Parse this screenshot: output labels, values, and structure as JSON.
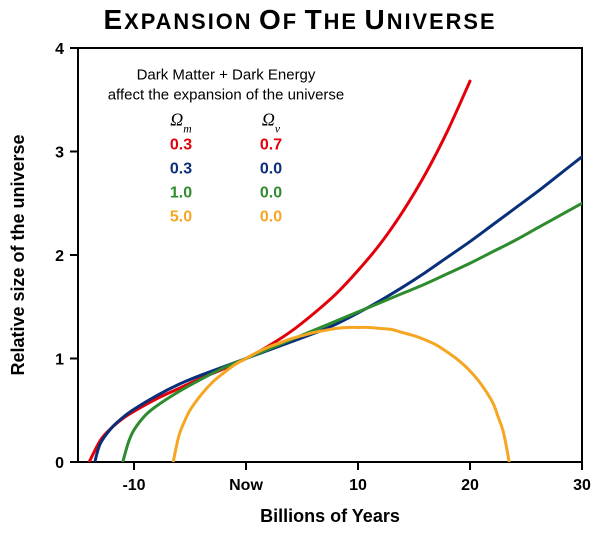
{
  "title": "Expansion of the Universe",
  "title_fontsize": 28,
  "xlabel": "Billions of Years",
  "ylabel": "Relative size of the universe",
  "background_color": "#ffffff",
  "plot_bg": "#ffffff",
  "axis_color": "#000000",
  "grid_color": "#000000",
  "border_color": "#000000",
  "xlim": [
    -15,
    30
  ],
  "ylim": [
    0,
    4
  ],
  "xticks": [
    -10,
    0,
    10,
    20,
    30
  ],
  "xtick_labels": [
    "-10",
    "Now",
    "10",
    "20",
    "30"
  ],
  "yticks": [
    0,
    1,
    2,
    3,
    4
  ],
  "ytick_labels": [
    "0",
    "1",
    "2",
    "3",
    "4"
  ],
  "tick_fontsize": 16,
  "label_fontsize": 18,
  "line_width": 3,
  "tick_len": 8,
  "legend": {
    "header1": "Dark Matter + Dark Energy",
    "header2": "affect the expansion of the universe",
    "col_m": "Ω",
    "col_m_sub": "m",
    "col_v": "Ω",
    "col_v_sub": "v",
    "header_color": "#000000",
    "header_fontsize": 15,
    "col_fontsize": 18,
    "val_fontsize": 16,
    "rows": [
      {
        "m": "0.3",
        "v": "0.7",
        "color": "#e3000b"
      },
      {
        "m": "0.3",
        "v": "0.0",
        "color": "#0a2f7a"
      },
      {
        "m": "1.0",
        "v": "0.0",
        "color": "#2e8b2e"
      },
      {
        "m": "5.0",
        "v": "0.0",
        "color": "#f5a623"
      }
    ]
  },
  "series": [
    {
      "name": "red",
      "color": "#e3000b",
      "x": [
        -14.0,
        -13,
        -12,
        -11,
        -10,
        -8,
        -6,
        -4,
        -2,
        0,
        2,
        4,
        6,
        8,
        10,
        12,
        14,
        16,
        18,
        20
      ],
      "y": [
        0.0,
        0.21,
        0.33,
        0.42,
        0.49,
        0.61,
        0.71,
        0.81,
        0.9,
        1.0,
        1.12,
        1.26,
        1.43,
        1.62,
        1.85,
        2.11,
        2.42,
        2.78,
        3.2,
        3.68
      ]
    },
    {
      "name": "blue",
      "color": "#0a2f7a",
      "x": [
        -13.5,
        -13,
        -12,
        -11,
        -10,
        -8,
        -6,
        -4,
        -2,
        0,
        2,
        4,
        6,
        8,
        10,
        12,
        14,
        16,
        18,
        20,
        22,
        24,
        26,
        28,
        30
      ],
      "y": [
        0.0,
        0.18,
        0.33,
        0.43,
        0.51,
        0.64,
        0.75,
        0.84,
        0.92,
        1.0,
        1.08,
        1.16,
        1.24,
        1.33,
        1.44,
        1.56,
        1.69,
        1.83,
        1.98,
        2.13,
        2.29,
        2.45,
        2.61,
        2.78,
        2.95
      ]
    },
    {
      "name": "green",
      "color": "#2e8b2e",
      "x": [
        -11.0,
        -10.5,
        -10,
        -9,
        -8,
        -6,
        -4,
        -2,
        0,
        2,
        4,
        6,
        8,
        10,
        12,
        14,
        16,
        18,
        20,
        22,
        24,
        26,
        28,
        30
      ],
      "y": [
        0.0,
        0.19,
        0.31,
        0.45,
        0.54,
        0.68,
        0.8,
        0.91,
        1.0,
        1.09,
        1.18,
        1.27,
        1.36,
        1.45,
        1.54,
        1.63,
        1.72,
        1.82,
        1.92,
        2.03,
        2.14,
        2.26,
        2.38,
        2.5
      ]
    },
    {
      "name": "orange",
      "color": "#f5a623",
      "x": [
        -6.5,
        -6,
        -5.5,
        -5,
        -4,
        -3,
        -2,
        -1,
        0,
        1,
        2,
        3,
        4,
        5,
        6,
        7,
        8,
        9,
        10,
        11,
        12,
        13,
        14,
        15,
        16,
        17,
        18,
        19,
        20,
        21,
        22,
        22.5,
        23,
        23.5
      ],
      "y": [
        0.0,
        0.25,
        0.39,
        0.5,
        0.65,
        0.77,
        0.86,
        0.94,
        1.0,
        1.06,
        1.11,
        1.15,
        1.19,
        1.22,
        1.25,
        1.27,
        1.29,
        1.3,
        1.3,
        1.3,
        1.29,
        1.28,
        1.25,
        1.22,
        1.18,
        1.13,
        1.06,
        0.98,
        0.88,
        0.75,
        0.58,
        0.44,
        0.28,
        0.0
      ]
    }
  ]
}
